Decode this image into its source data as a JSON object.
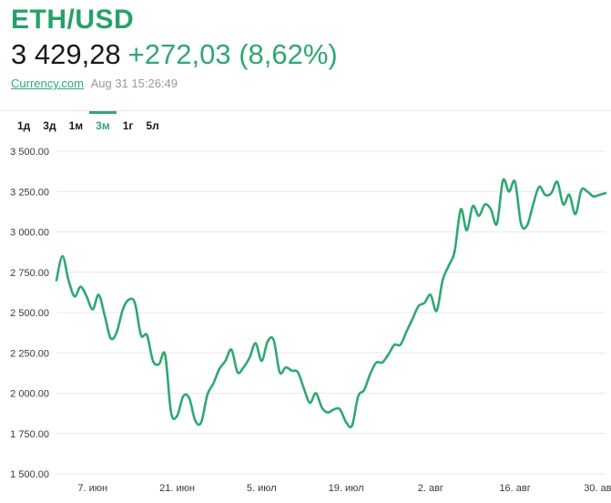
{
  "header": {
    "pair": "ETH/USD",
    "price": "3 429,28",
    "change": "+272,03 (8,62%)",
    "source": "Currency.com",
    "timestamp": "Aug 31 15:26:49"
  },
  "tabs": [
    {
      "label": "1д",
      "active": false
    },
    {
      "label": "3д",
      "active": false
    },
    {
      "label": "1м",
      "active": false
    },
    {
      "label": "3м",
      "active": true
    },
    {
      "label": "1г",
      "active": false
    },
    {
      "label": "5л",
      "active": false
    }
  ],
  "colors": {
    "accent": "#2fa872",
    "grid": "#e8e8e8",
    "text": "#1a1a1a"
  },
  "chart_data": {
    "type": "line",
    "title": "",
    "xlabel": "",
    "ylabel": "",
    "ylim": [
      1500,
      3500
    ],
    "xlim": [
      "2021-06-01",
      "2021-08-31"
    ],
    "grid": true,
    "y_ticks": [
      "1 500.00",
      "1 750.00",
      "2 000.00",
      "2 250.00",
      "2 500.00",
      "2 750.00",
      "3 000.00",
      "3 250.00",
      "3 500.00"
    ],
    "y_tick_values": [
      1500,
      1750,
      2000,
      2250,
      2500,
      2750,
      3000,
      3250,
      3500
    ],
    "x_ticks": [
      {
        "label": "7. июн",
        "date": "2021-06-07"
      },
      {
        "label": "21. июн",
        "date": "2021-06-21"
      },
      {
        "label": "5. июл",
        "date": "2021-07-05"
      },
      {
        "label": "19. июл",
        "date": "2021-07-19"
      },
      {
        "label": "2. авг",
        "date": "2021-08-02"
      },
      {
        "label": "16. авг",
        "date": "2021-08-16"
      },
      {
        "label": "30. авг",
        "date": "2021-08-30"
      }
    ],
    "series": [
      {
        "color": "#2fa872",
        "points": [
          [
            "2021-06-01",
            2700
          ],
          [
            "2021-06-02",
            2850
          ],
          [
            "2021-06-03",
            2700
          ],
          [
            "2021-06-04",
            2600
          ],
          [
            "2021-06-05",
            2660
          ],
          [
            "2021-06-06",
            2600
          ],
          [
            "2021-06-07",
            2520
          ],
          [
            "2021-06-08",
            2610
          ],
          [
            "2021-06-09",
            2480
          ],
          [
            "2021-06-10",
            2340
          ],
          [
            "2021-06-11",
            2380
          ],
          [
            "2021-06-12",
            2520
          ],
          [
            "2021-06-13",
            2580
          ],
          [
            "2021-06-14",
            2560
          ],
          [
            "2021-06-15",
            2360
          ],
          [
            "2021-06-16",
            2360
          ],
          [
            "2021-06-17",
            2200
          ],
          [
            "2021-06-18",
            2180
          ],
          [
            "2021-06-19",
            2240
          ],
          [
            "2021-06-20",
            1880
          ],
          [
            "2021-06-21",
            1860
          ],
          [
            "2021-06-22",
            1980
          ],
          [
            "2021-06-23",
            1970
          ],
          [
            "2021-06-24",
            1830
          ],
          [
            "2021-06-25",
            1820
          ],
          [
            "2021-06-26",
            1990
          ],
          [
            "2021-06-27",
            2060
          ],
          [
            "2021-06-28",
            2150
          ],
          [
            "2021-06-29",
            2200
          ],
          [
            "2021-06-30",
            2270
          ],
          [
            "2021-07-01",
            2130
          ],
          [
            "2021-07-02",
            2160
          ],
          [
            "2021-07-03",
            2220
          ],
          [
            "2021-07-04",
            2310
          ],
          [
            "2021-07-05",
            2200
          ],
          [
            "2021-07-06",
            2320
          ],
          [
            "2021-07-07",
            2330
          ],
          [
            "2021-07-08",
            2130
          ],
          [
            "2021-07-09",
            2160
          ],
          [
            "2021-07-10",
            2140
          ],
          [
            "2021-07-11",
            2130
          ],
          [
            "2021-07-12",
            2030
          ],
          [
            "2021-07-13",
            1940
          ],
          [
            "2021-07-14",
            2000
          ],
          [
            "2021-07-15",
            1910
          ],
          [
            "2021-07-16",
            1880
          ],
          [
            "2021-07-17",
            1900
          ],
          [
            "2021-07-18",
            1900
          ],
          [
            "2021-07-19",
            1820
          ],
          [
            "2021-07-20",
            1800
          ],
          [
            "2021-07-21",
            1980
          ],
          [
            "2021-07-22",
            2020
          ],
          [
            "2021-07-23",
            2120
          ],
          [
            "2021-07-24",
            2190
          ],
          [
            "2021-07-25",
            2190
          ],
          [
            "2021-07-26",
            2240
          ],
          [
            "2021-07-27",
            2300
          ],
          [
            "2021-07-28",
            2300
          ],
          [
            "2021-07-29",
            2380
          ],
          [
            "2021-07-30",
            2460
          ],
          [
            "2021-07-31",
            2540
          ],
          [
            "2021-08-01",
            2560
          ],
          [
            "2021-08-02",
            2610
          ],
          [
            "2021-08-03",
            2510
          ],
          [
            "2021-08-04",
            2700
          ],
          [
            "2021-08-05",
            2790
          ],
          [
            "2021-08-06",
            2880
          ],
          [
            "2021-08-07",
            3140
          ],
          [
            "2021-08-08",
            3010
          ],
          [
            "2021-08-09",
            3160
          ],
          [
            "2021-08-10",
            3100
          ],
          [
            "2021-08-11",
            3170
          ],
          [
            "2021-08-12",
            3140
          ],
          [
            "2021-08-13",
            3050
          ],
          [
            "2021-08-14",
            3320
          ],
          [
            "2021-08-15",
            3250
          ],
          [
            "2021-08-16",
            3310
          ],
          [
            "2021-08-17",
            3050
          ],
          [
            "2021-08-18",
            3040
          ],
          [
            "2021-08-19",
            3170
          ],
          [
            "2021-08-20",
            3280
          ],
          [
            "2021-08-21",
            3230
          ],
          [
            "2021-08-22",
            3240
          ],
          [
            "2021-08-23",
            3310
          ],
          [
            "2021-08-24",
            3170
          ],
          [
            "2021-08-25",
            3230
          ],
          [
            "2021-08-26",
            3110
          ],
          [
            "2021-08-27",
            3260
          ],
          [
            "2021-08-28",
            3250
          ],
          [
            "2021-08-29",
            3220
          ],
          [
            "2021-08-30",
            3230
          ],
          [
            "2021-08-31",
            3240
          ]
        ]
      }
    ]
  }
}
